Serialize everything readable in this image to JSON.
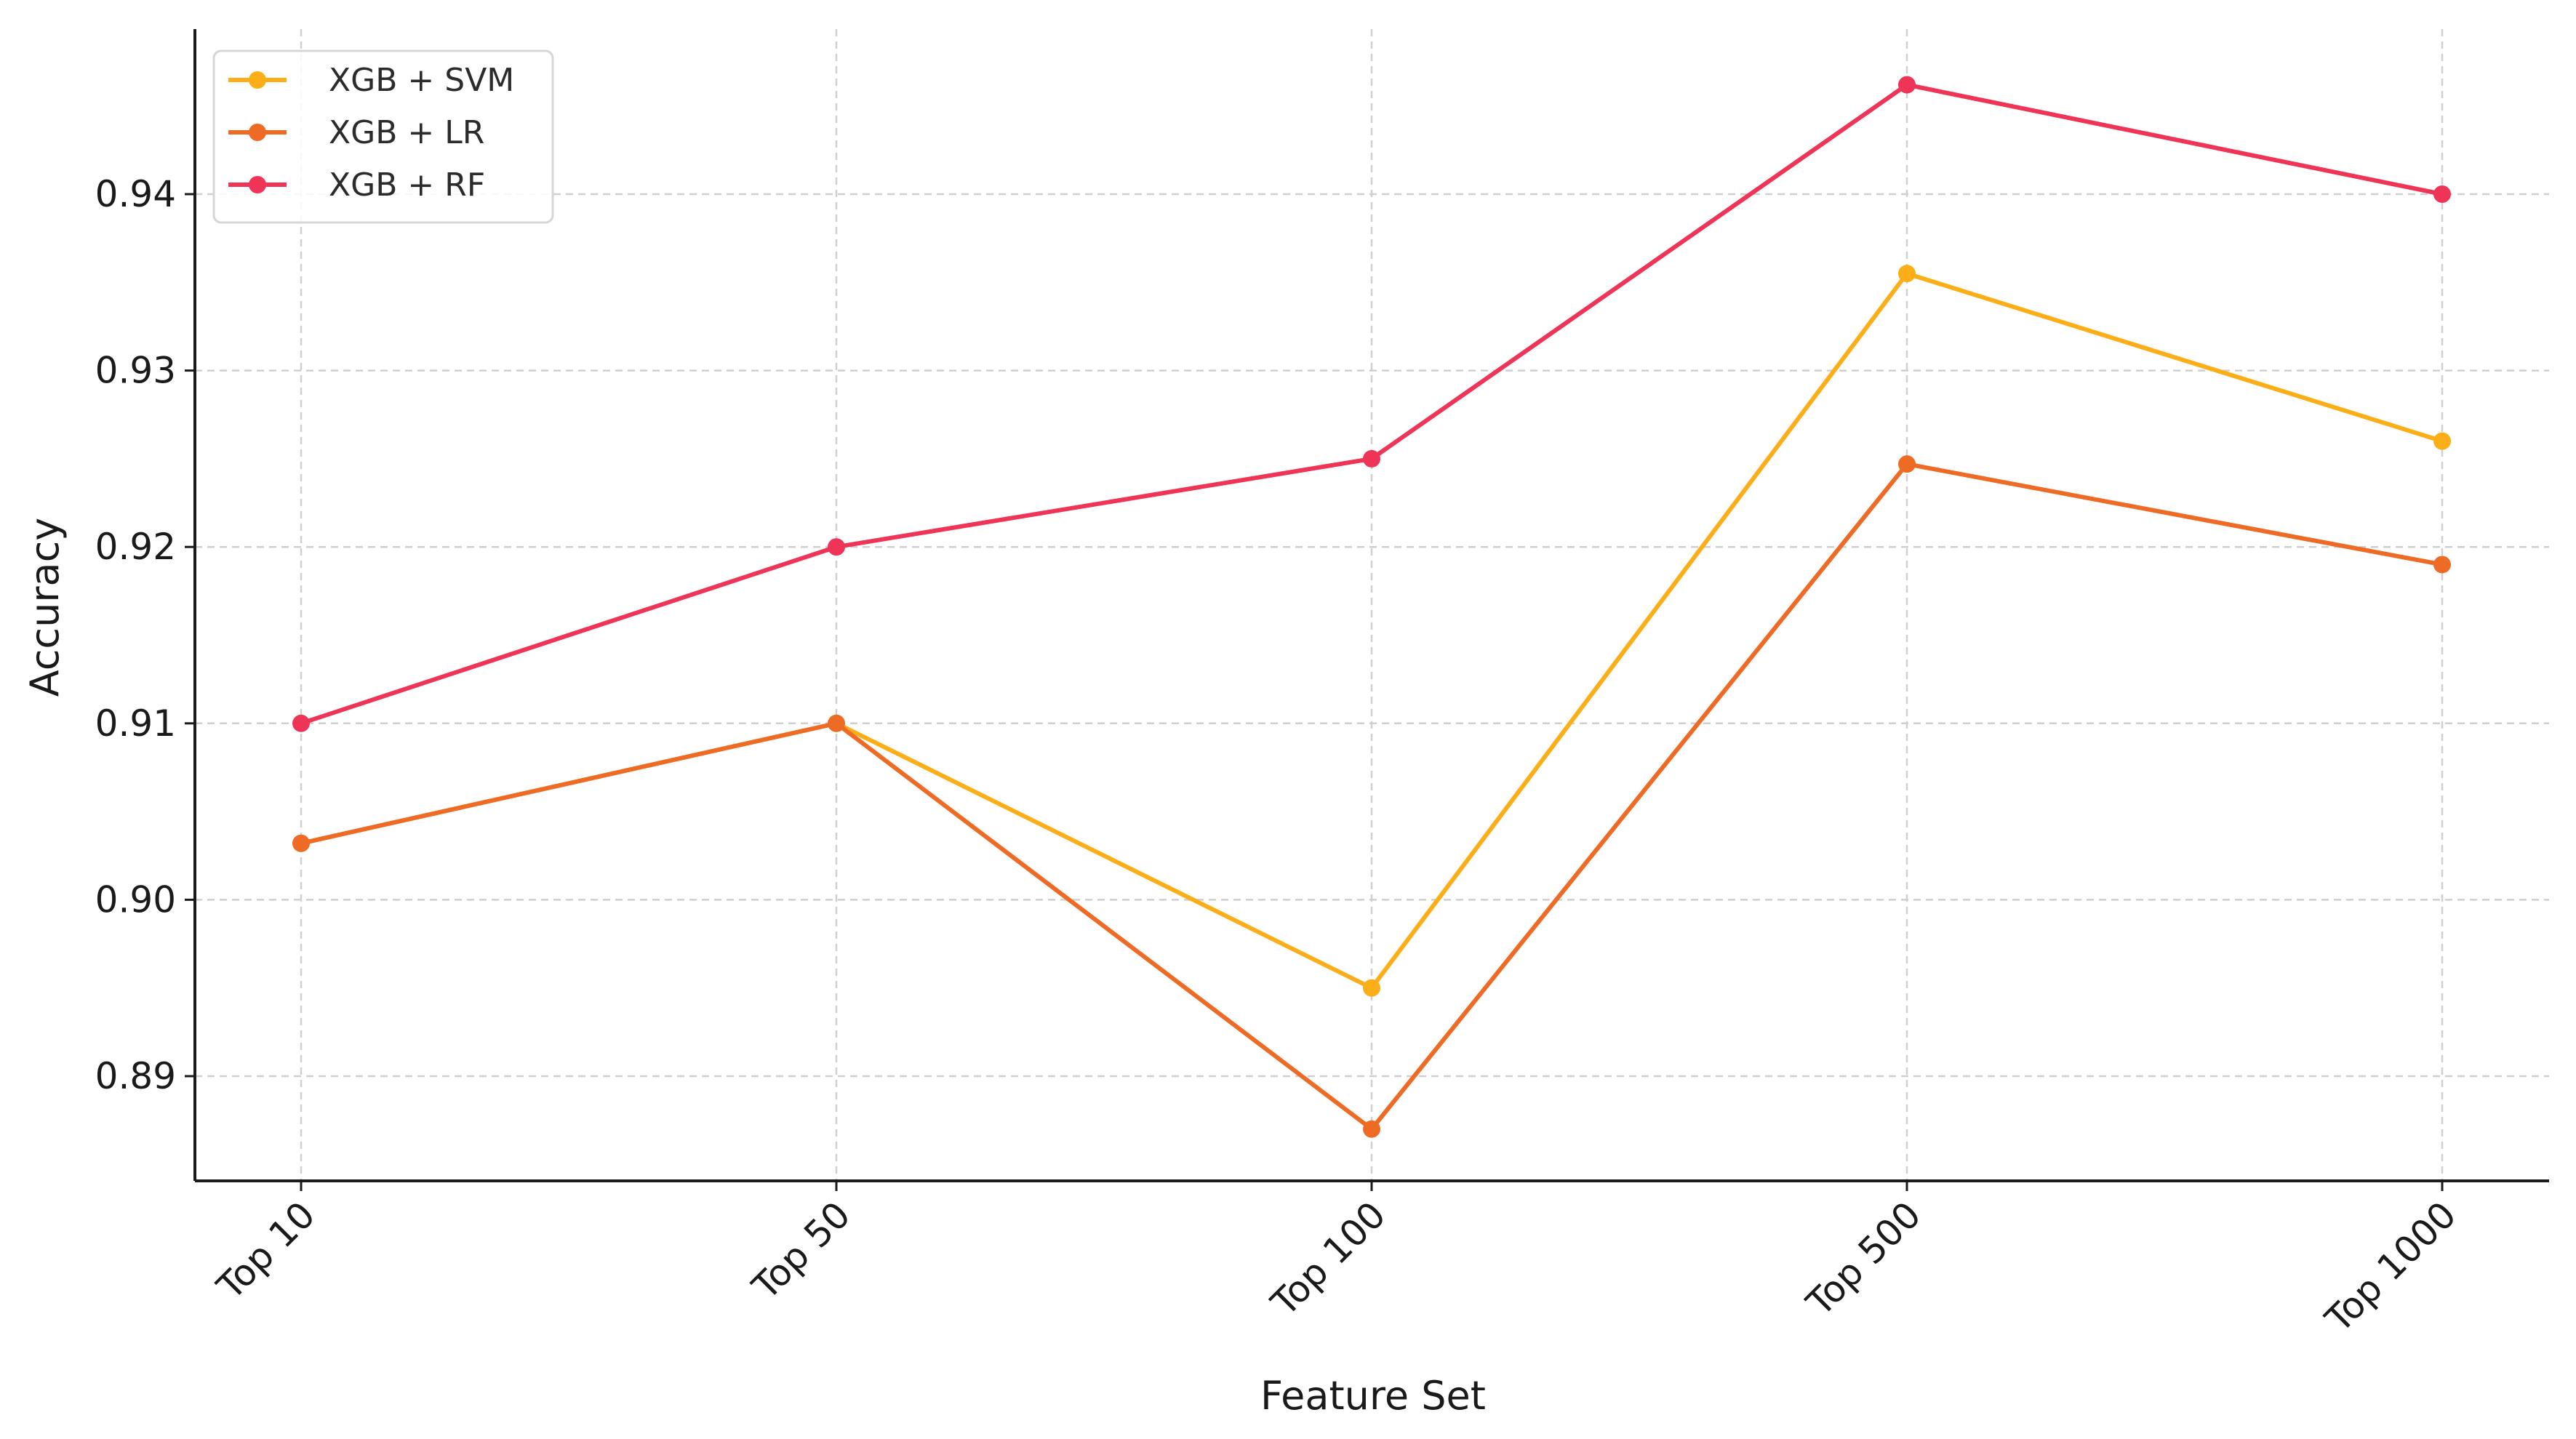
{
  "chart_data": {
    "type": "line",
    "title": "",
    "xlabel": "Feature Set",
    "ylabel": "Accuracy",
    "categories": [
      "Top 10",
      "Top 50",
      "Top 100",
      "Top 500",
      "Top 1000"
    ],
    "ylim": [
      0.885,
      0.949
    ],
    "yticks": [
      "0.89",
      "0.90",
      "0.91",
      "0.92",
      "0.93",
      "0.94"
    ],
    "grid": true,
    "legend_position": "top-left",
    "series": [
      {
        "name": "XGB + SVM",
        "color": "#FBAE17",
        "values": [
          0.9032,
          0.91,
          0.895,
          0.9355,
          0.926
        ]
      },
      {
        "name": "XGB + LR",
        "color": "#EE6B25",
        "values": [
          0.9032,
          0.91,
          0.887,
          0.9247,
          0.919
        ]
      },
      {
        "name": "XGB + RF",
        "color": "#EE3457",
        "values": [
          0.91,
          0.92,
          0.925,
          0.9462,
          0.94
        ]
      }
    ]
  }
}
